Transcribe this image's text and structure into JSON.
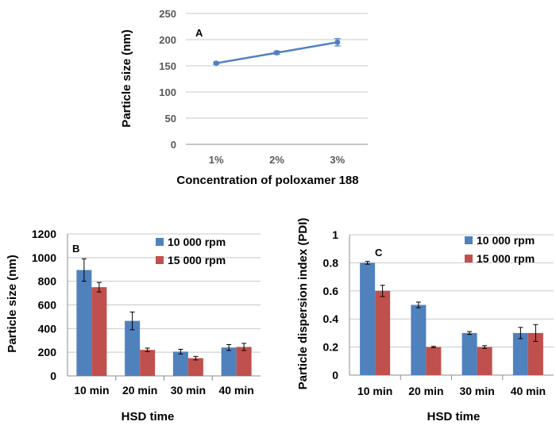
{
  "colors": {
    "series1": "#4f81bd",
    "series2": "#c0504d",
    "grid": "#c8c8c8",
    "axis": "#8c8c8c"
  },
  "chart_data": [
    {
      "id": "A",
      "type": "line",
      "panel_label": "A",
      "categories": [
        "1%",
        "2%",
        "3%"
      ],
      "series": [
        {
          "name": "Particle size",
          "values": [
            155,
            175,
            195
          ],
          "errors": [
            2,
            3,
            7
          ]
        }
      ],
      "xlabel": "Concentration of  poloxamer 188",
      "ylabel": "Particle size  (nm)",
      "ylim": [
        0,
        250
      ],
      "yticks": [
        0,
        50,
        100,
        150,
        200,
        250
      ],
      "grid": true
    },
    {
      "id": "B",
      "type": "bar",
      "panel_label": "B",
      "categories": [
        "10 min",
        "20 min",
        "30 min",
        "40 min"
      ],
      "series": [
        {
          "name": "10 000 rpm",
          "values": [
            895,
            465,
            205,
            240
          ],
          "errors": [
            95,
            75,
            20,
            25
          ]
        },
        {
          "name": "15 000 rpm",
          "values": [
            750,
            220,
            150,
            245
          ],
          "errors": [
            40,
            15,
            15,
            30
          ]
        }
      ],
      "xlabel": "HSD time",
      "ylabel": "Particle size (nm)",
      "ylim": [
        0,
        1200
      ],
      "yticks": [
        0,
        200,
        400,
        600,
        800,
        1000,
        1200
      ],
      "legend_position": "top-right",
      "grid": true
    },
    {
      "id": "C",
      "type": "bar",
      "panel_label": "C",
      "categories": [
        "10 min",
        "20 min",
        "30 min",
        "40 min"
      ],
      "series": [
        {
          "name": "10 000 rpm",
          "values": [
            0.8,
            0.5,
            0.3,
            0.3
          ],
          "errors": [
            0.01,
            0.02,
            0.01,
            0.04
          ]
        },
        {
          "name": "15 000 rpm",
          "values": [
            0.6,
            0.2,
            0.2,
            0.3
          ],
          "errors": [
            0.04,
            0.005,
            0.01,
            0.06
          ]
        }
      ],
      "xlabel": "HSD time",
      "ylabel": "Particle dispersion index (PDI)",
      "ylim": [
        0,
        1
      ],
      "yticks": [
        "0",
        "0.2",
        "0.4",
        "0.6",
        "0.8",
        "1"
      ],
      "legend_position": "top-right",
      "grid": true
    }
  ]
}
